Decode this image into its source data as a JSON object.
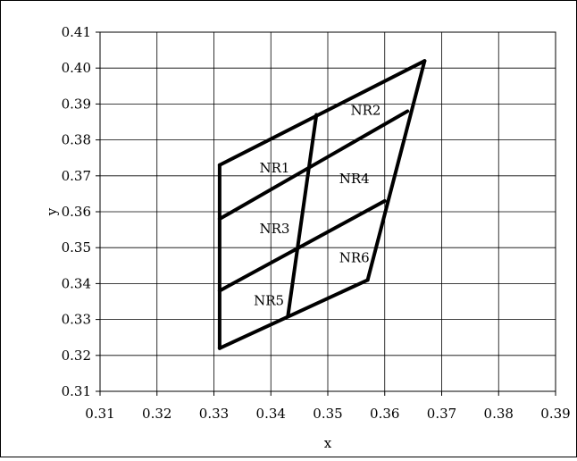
{
  "chart_data": {
    "type": "line",
    "title": "",
    "xlabel": "x",
    "ylabel": "y",
    "xlim": [
      0.31,
      0.39
    ],
    "ylim": [
      0.31,
      0.41
    ],
    "x_ticks": [
      "0.31",
      "0.32",
      "0.33",
      "0.34",
      "0.35",
      "0.36",
      "0.37",
      "0.38",
      "0.39"
    ],
    "y_ticks": [
      "0.31",
      "0.32",
      "0.33",
      "0.34",
      "0.35",
      "0.36",
      "0.37",
      "0.38",
      "0.39",
      "0.40",
      "0.41"
    ],
    "grid": true,
    "line_color": "#000000",
    "series": [
      {
        "x": [
          0.331,
          0.367
        ],
        "y": [
          0.373,
          0.402
        ]
      },
      {
        "x": [
          0.331,
          0.364
        ],
        "y": [
          0.358,
          0.388
        ]
      },
      {
        "x": [
          0.331,
          0.36
        ],
        "y": [
          0.338,
          0.363
        ]
      },
      {
        "x": [
          0.331,
          0.357
        ],
        "y": [
          0.322,
          0.341
        ]
      },
      {
        "x": [
          0.331,
          0.331
        ],
        "y": [
          0.322,
          0.373
        ]
      },
      {
        "x": [
          0.343,
          0.348
        ],
        "y": [
          0.331,
          0.387
        ]
      },
      {
        "x": [
          0.357,
          0.367
        ],
        "y": [
          0.341,
          0.402
        ]
      }
    ],
    "annotations": [
      {
        "text": "NR1",
        "x": 0.338,
        "y": 0.371
      },
      {
        "text": "NR2",
        "x": 0.354,
        "y": 0.387
      },
      {
        "text": "NR3",
        "x": 0.338,
        "y": 0.354
      },
      {
        "text": "NR4",
        "x": 0.352,
        "y": 0.368
      },
      {
        "text": "NR5",
        "x": 0.337,
        "y": 0.334
      },
      {
        "text": "NR6",
        "x": 0.352,
        "y": 0.346
      }
    ]
  }
}
